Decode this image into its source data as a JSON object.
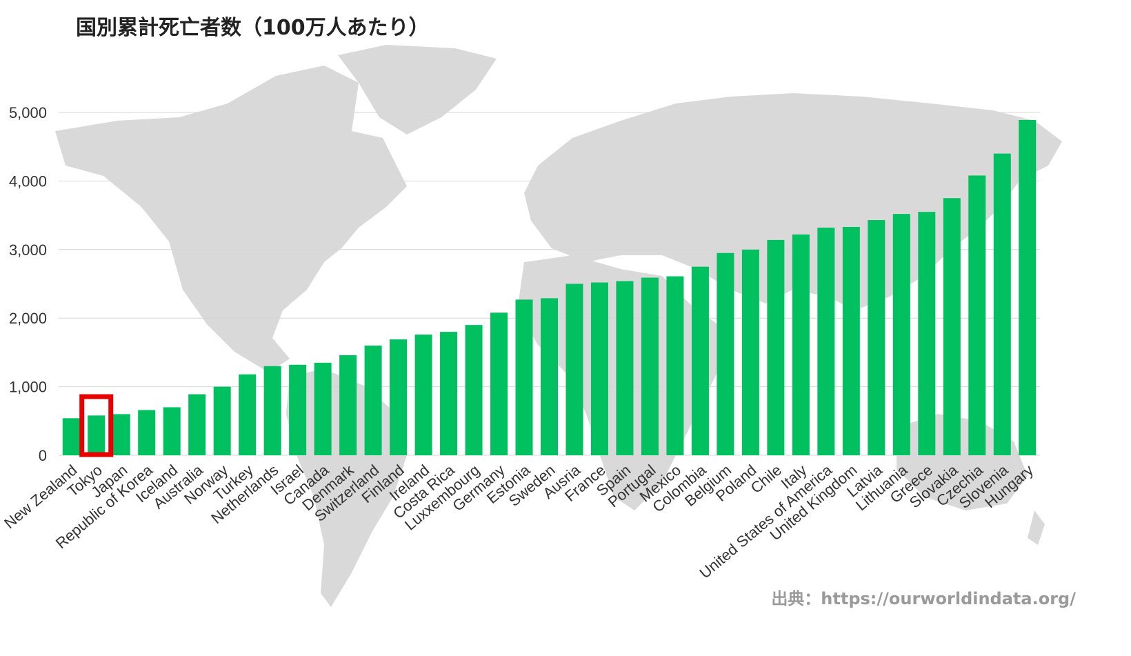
{
  "chart_data": {
    "type": "bar",
    "title": "国別累計死亡者数（100万人あたり）",
    "source": "出典：https://ourworldindata.org/",
    "xlabel": "",
    "ylabel": "",
    "ylim": [
      0,
      5000
    ],
    "yticks": [
      0,
      1000,
      2000,
      3000,
      4000,
      5000
    ],
    "ytick_labels": [
      "0",
      "1,000",
      "2,000",
      "3,000",
      "4,000",
      "5,000"
    ],
    "grid": true,
    "legend": "none",
    "bar_color": "#00c060",
    "highlight_color": "#e60000",
    "highlight_category": "Tokyo",
    "categories": [
      "New Zealand",
      "Tokyo",
      "Japan",
      "Republic of Korea",
      "Iceland",
      "Australia",
      "Norway",
      "Turkey",
      "Netherlands",
      "Israel",
      "Canada",
      "Denmark",
      "Switzerland",
      "Finland",
      "Ireland",
      "Costa Rica",
      "Luxxembourg",
      "Germany",
      "Estonia",
      "Sweden",
      "Ausria",
      "France",
      "Spain",
      "Portugal",
      "Mexico",
      "Colombia",
      "Belgium",
      "Poland",
      "Chile",
      "Italy",
      "United States of America",
      "United Kingdom",
      "Latvia",
      "Lithuania",
      "Greece",
      "Slovakia",
      "Czechia",
      "Slovenia",
      "Hungary"
    ],
    "values": [
      540,
      580,
      600,
      660,
      700,
      890,
      1000,
      1180,
      1300,
      1320,
      1350,
      1460,
      1600,
      1690,
      1760,
      1800,
      1900,
      2080,
      2270,
      2290,
      2500,
      2520,
      2540,
      2590,
      2610,
      2750,
      2950,
      3000,
      3140,
      3220,
      3320,
      3330,
      3430,
      3520,
      3550,
      3750,
      4080,
      4400,
      4890
    ]
  }
}
